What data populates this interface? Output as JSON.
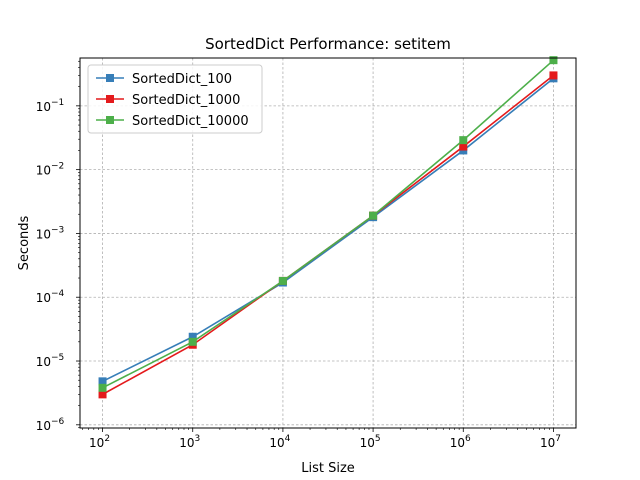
{
  "chart_data": {
    "type": "line",
    "title": "SortedDict Performance: setitem",
    "xlabel": "List Size",
    "ylabel": "Seconds",
    "x_scale": "log",
    "y_scale": "log",
    "x": [
      100,
      1000,
      10000,
      100000,
      1000000,
      10000000
    ],
    "x_tick_labels": [
      {
        "base": "10",
        "exp": "2"
      },
      {
        "base": "10",
        "exp": "3"
      },
      {
        "base": "10",
        "exp": "4"
      },
      {
        "base": "10",
        "exp": "5"
      },
      {
        "base": "10",
        "exp": "6"
      },
      {
        "base": "10",
        "exp": "7"
      }
    ],
    "y_tick_labels": [
      {
        "base": "10",
        "exp": "−6"
      },
      {
        "base": "10",
        "exp": "−5"
      },
      {
        "base": "10",
        "exp": "−4"
      },
      {
        "base": "10",
        "exp": "−3"
      },
      {
        "base": "10",
        "exp": "−2"
      },
      {
        "base": "10",
        "exp": "−1"
      }
    ],
    "grid": true,
    "legend_position": "top-left",
    "series": [
      {
        "name": "SortedDict_100",
        "color": "#377eb8",
        "values": [
          4.8e-06,
          2.4e-05,
          0.00017,
          0.0018,
          0.02,
          0.27
        ]
      },
      {
        "name": "SortedDict_1000",
        "color": "#e41a1c",
        "values": [
          3e-06,
          1.8e-05,
          0.00018,
          0.0019,
          0.023,
          0.3
        ]
      },
      {
        "name": "SortedDict_10000",
        "color": "#4daf4a",
        "values": [
          3.8e-06,
          2e-05,
          0.00018,
          0.0019,
          0.029,
          0.52
        ]
      }
    ]
  }
}
